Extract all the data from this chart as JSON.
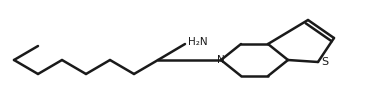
{
  "background_color": "#ffffff",
  "line_color": "#1a1a1a",
  "line_width": 1.8,
  "text_color": "#1a1a1a",
  "label_NH2": "H₂N",
  "label_N": "N",
  "label_S": "S",
  "figsize": [
    3.7,
    1.1
  ],
  "dpi": 100
}
